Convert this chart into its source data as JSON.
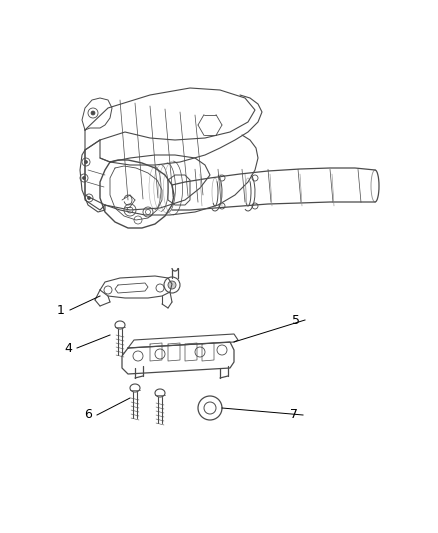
{
  "background_color": "#ffffff",
  "line_color": "#4a4a4a",
  "label_color": "#000000",
  "figsize": [
    4.39,
    5.33
  ],
  "dpi": 100,
  "label_fontsize": 9
}
